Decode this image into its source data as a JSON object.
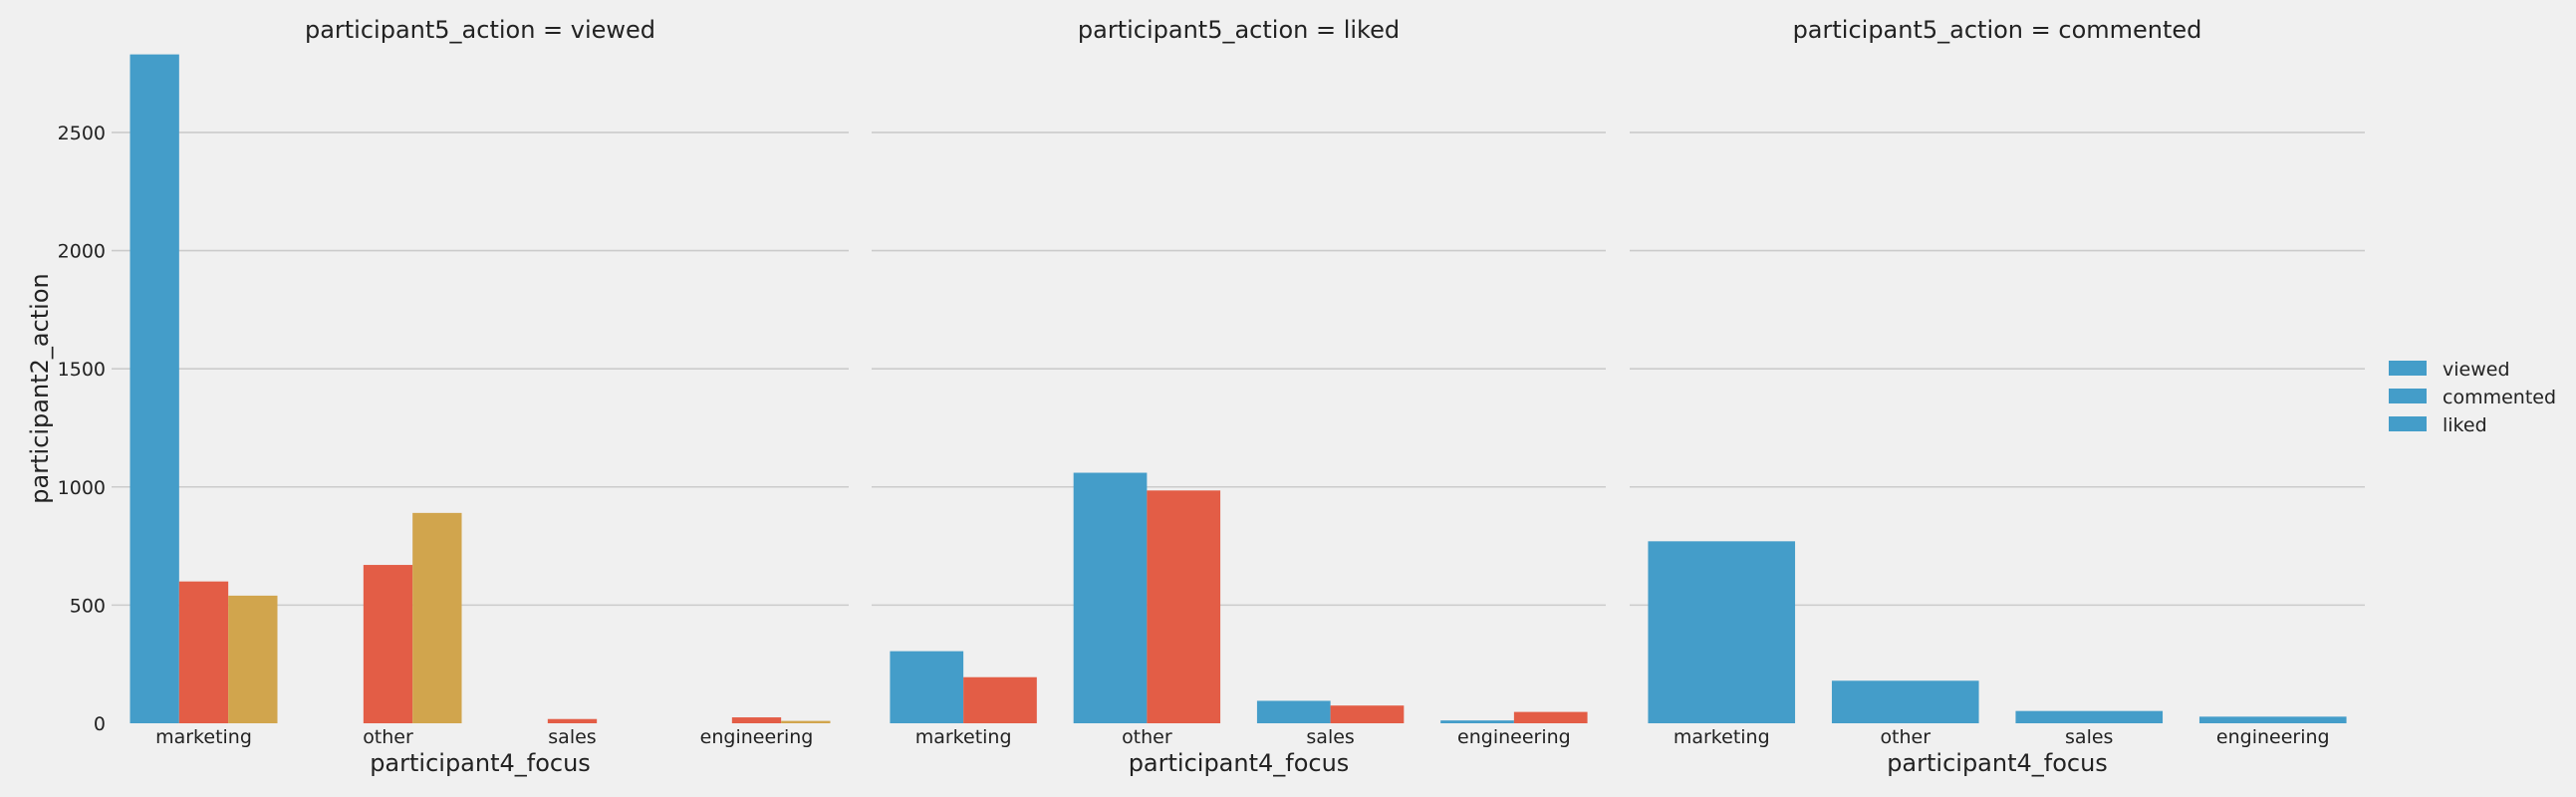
{
  "chart_data": {
    "type": "bar",
    "ylabel": "participant2_action",
    "xlabel": "participant4_focus",
    "categories": [
      "marketing",
      "other",
      "sales",
      "engineering"
    ],
    "ylim": [
      0,
      2900
    ],
    "yticks": [
      0,
      500,
      1000,
      1500,
      2000,
      2500
    ],
    "grid": true,
    "legend_position": "right",
    "legend": {
      "entries": [
        "viewed",
        "commented",
        "liked"
      ],
      "colors": [
        "#449dc9",
        "#449dc9",
        "#449dc9"
      ]
    },
    "hue_colors": [
      "#449dc9",
      "#e35d46",
      "#d1a54d"
    ],
    "panels": [
      {
        "title": "participant5_action = viewed",
        "series": [
          {
            "values": [
              2830,
              0,
              0,
              0
            ]
          },
          {
            "values": [
              600,
              670,
              18,
              25
            ]
          },
          {
            "values": [
              540,
              890,
              0,
              10
            ]
          }
        ]
      },
      {
        "title": "participant5_action = liked",
        "series": [
          {
            "values": [
              305,
              1060,
              95,
              12
            ]
          },
          {
            "values": [
              195,
              985,
              75,
              48
            ]
          }
        ]
      },
      {
        "title": "participant5_action = commented",
        "series": [
          {
            "values": [
              770,
              180,
              52,
              28
            ]
          }
        ]
      }
    ]
  }
}
